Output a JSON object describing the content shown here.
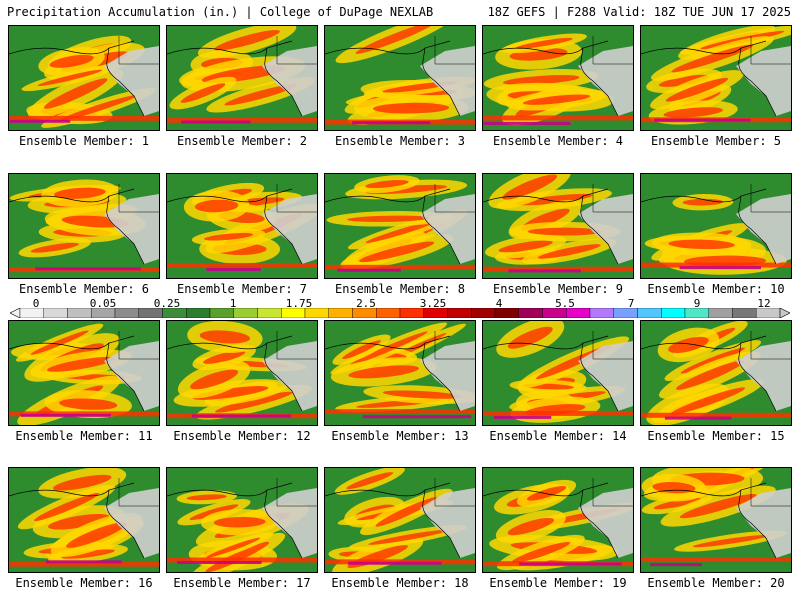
{
  "header": {
    "left": "Precipitation Accumulation (in.) | College of DuPage NEXLAB",
    "right": "18Z GEFS | F288 Valid: 18Z TUE JUN 17 2025"
  },
  "members": [
    "Ensemble Member: 1",
    "Ensemble Member: 2",
    "Ensemble Member: 3",
    "Ensemble Member: 4",
    "Ensemble Member: 5",
    "Ensemble Member: 6",
    "Ensemble Member: 7",
    "Ensemble Member: 8",
    "Ensemble Member: 9",
    "Ensemble Member: 10",
    "Ensemble Member: 11",
    "Ensemble Member: 12",
    "Ensemble Member: 13",
    "Ensemble Member: 14",
    "Ensemble Member: 15",
    "Ensemble Member: 16",
    "Ensemble Member: 17",
    "Ensemble Member: 18",
    "Ensemble Member: 19",
    "Ensemble Member: 20"
  ],
  "colorbar": {
    "labels": [
      "0",
      "0.05",
      "0.25",
      "1",
      "1.75",
      "2.5",
      "3.25",
      "4",
      "5.5",
      "7",
      "9",
      "12"
    ],
    "colors": [
      "#f2f2f2",
      "#d9d9d9",
      "#bfbfbf",
      "#a6a6a6",
      "#8c8c8c",
      "#737373",
      "#3c8c3c",
      "#2e7d2e",
      "#5aa02a",
      "#9acd32",
      "#c8e632",
      "#ffff00",
      "#ffd700",
      "#ffb000",
      "#ff8c00",
      "#ff6000",
      "#ff3000",
      "#e00000",
      "#c00000",
      "#a00000",
      "#800000",
      "#a0005a",
      "#c8008c",
      "#e600c8",
      "#b478ff",
      "#78a0ff",
      "#50c8ff",
      "#00ffff",
      "#50e6c8",
      "#a0a0a0",
      "#787878",
      "#c8c8c8"
    ]
  },
  "legend_colors": {
    "ocean_base": "#2e8b2e",
    "moderate": "#ffd700",
    "heavy": "#ff3000",
    "extreme": "#c8008c",
    "dry_land": "#cfcfcf"
  }
}
